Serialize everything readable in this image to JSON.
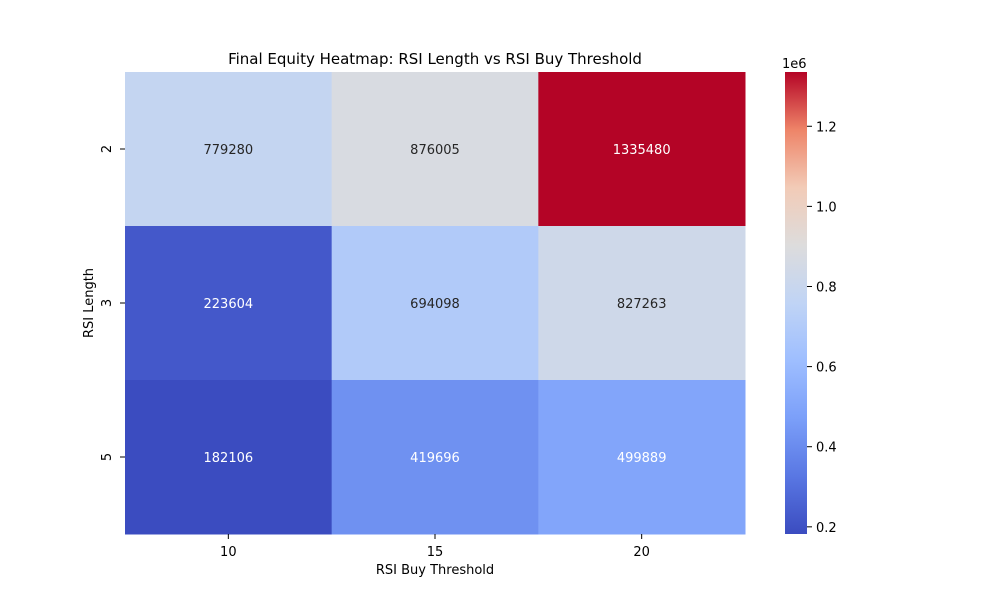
{
  "chart_data": {
    "type": "heatmap",
    "title": "Final Equity Heatmap: RSI Length vs RSI Buy Threshold",
    "xlabel": "RSI Buy Threshold",
    "ylabel": "RSI Length",
    "x_categories": [
      "10",
      "15",
      "20"
    ],
    "y_categories": [
      "2",
      "3",
      "5"
    ],
    "values": [
      [
        779280,
        876005,
        1335480
      ],
      [
        223604,
        694098,
        827263
      ],
      [
        182106,
        419696,
        499889
      ]
    ],
    "cell_labels": [
      [
        "779280",
        "876005",
        "1335480"
      ],
      [
        "223604",
        "694098",
        "827263"
      ],
      [
        "182106",
        "419696",
        "499889"
      ]
    ],
    "colormap": "coolwarm",
    "colorbar": {
      "vmin": 182106,
      "vmax": 1335480,
      "ticks": [
        0.2,
        0.4,
        0.6,
        0.8,
        1.0,
        1.2
      ],
      "tick_labels": [
        "0.2",
        "0.4",
        "0.6",
        "0.8",
        "1.0",
        "1.2"
      ],
      "scale_label": "1e6"
    }
  }
}
